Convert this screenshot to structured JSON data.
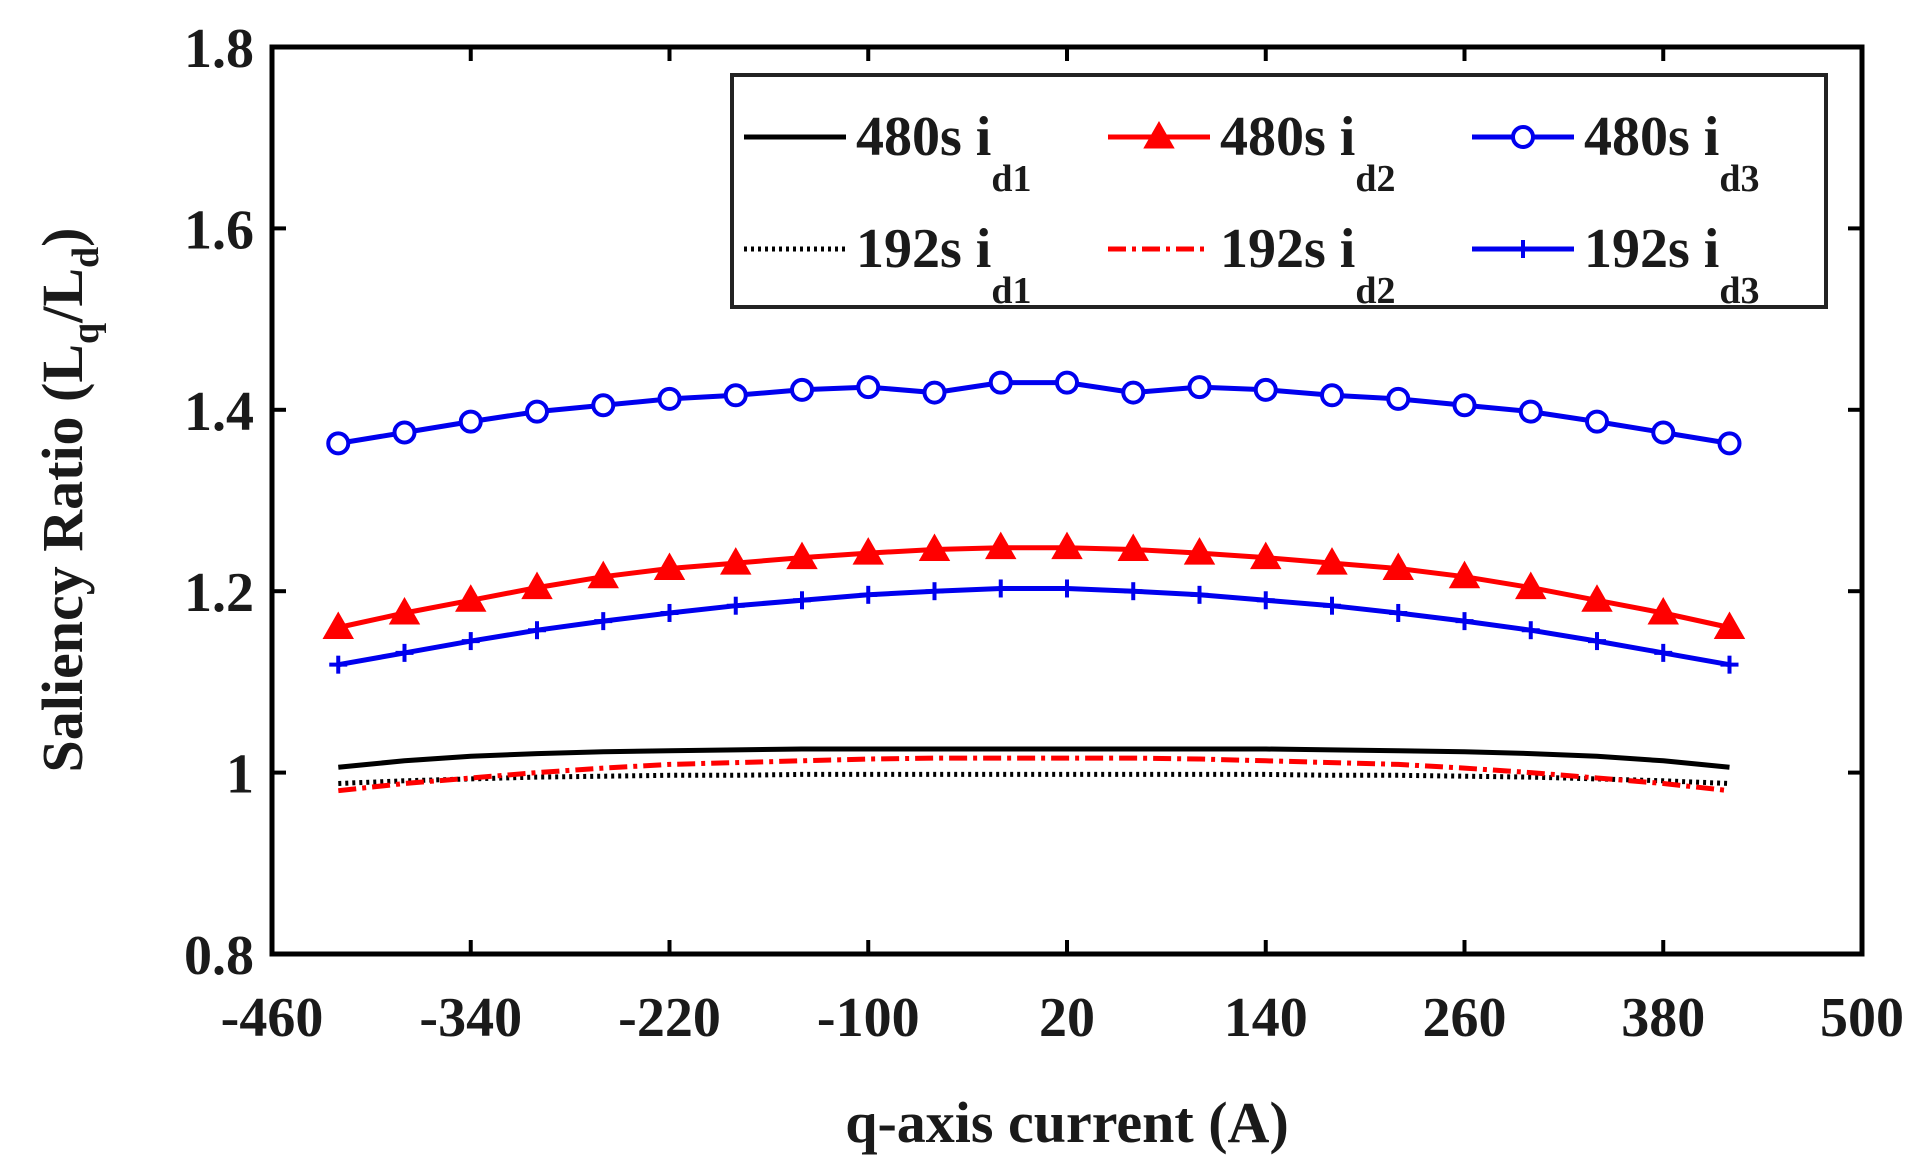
{
  "chart_data": {
    "type": "line",
    "title": "",
    "xlabel": "q-axis current (A)",
    "ylabel": {
      "main": "Saliency Ratio (L",
      "sub1": "q",
      "mid": "/L",
      "sub2": "d",
      "end": ")"
    },
    "xlim": [
      -460,
      500
    ],
    "ylim": [
      0.8,
      1.8
    ],
    "xticks": [
      "-460",
      "-340",
      "-220",
      "-100",
      "20",
      "140",
      "260",
      "380",
      "500"
    ],
    "yticks": [
      "0.8",
      "1",
      "1.2",
      "1.4",
      "1.6",
      "1.8"
    ],
    "x": [
      -420,
      -380,
      -340,
      -300,
      -260,
      -220,
      -180,
      -140,
      -100,
      -60,
      -20,
      20,
      60,
      100,
      140,
      180,
      220,
      260,
      300,
      340,
      380,
      420
    ],
    "series": [
      {
        "name": "480s i_d1",
        "label": "480s i",
        "sub": "d1",
        "color": "#000000",
        "style": "solid",
        "marker": "none",
        "values": [
          1.006,
          1.013,
          1.018,
          1.021,
          1.023,
          1.024,
          1.025,
          1.026,
          1.026,
          1.026,
          1.026,
          1.026,
          1.026,
          1.026,
          1.026,
          1.025,
          1.024,
          1.023,
          1.021,
          1.018,
          1.013,
          1.006
        ]
      },
      {
        "name": "480s i_d2",
        "label": "480s i",
        "sub": "d2",
        "color": "#ff0000",
        "style": "solid",
        "marker": "triangle",
        "values": [
          1.16,
          1.176,
          1.19,
          1.204,
          1.216,
          1.225,
          1.231,
          1.237,
          1.242,
          1.246,
          1.248,
          1.248,
          1.246,
          1.242,
          1.237,
          1.231,
          1.225,
          1.216,
          1.204,
          1.19,
          1.176,
          1.16
        ]
      },
      {
        "name": "480s i_d3",
        "label": "480s i",
        "sub": "d3",
        "color": "#0000ee",
        "style": "solid",
        "marker": "circle",
        "values": [
          1.363,
          1.375,
          1.387,
          1.398,
          1.405,
          1.412,
          1.416,
          1.422,
          1.425,
          1.419,
          1.43,
          1.43,
          1.419,
          1.425,
          1.422,
          1.416,
          1.412,
          1.405,
          1.398,
          1.387,
          1.375,
          1.363
        ]
      },
      {
        "name": "192s i_d1",
        "label": "192s i",
        "sub": "d1",
        "color": "#000000",
        "style": "dotted",
        "marker": "none",
        "values": [
          0.988,
          0.991,
          0.993,
          0.995,
          0.996,
          0.997,
          0.997,
          0.998,
          0.998,
          0.998,
          0.998,
          0.998,
          0.998,
          0.998,
          0.998,
          0.997,
          0.997,
          0.996,
          0.995,
          0.993,
          0.991,
          0.988
        ]
      },
      {
        "name": "192s i_d2",
        "label": "192s i",
        "sub": "d2",
        "color": "#ff0000",
        "style": "dashdot",
        "marker": "none",
        "values": [
          0.98,
          0.988,
          0.994,
          1.0,
          1.005,
          1.009,
          1.011,
          1.013,
          1.015,
          1.016,
          1.016,
          1.016,
          1.016,
          1.015,
          1.013,
          1.011,
          1.009,
          1.005,
          1.0,
          0.994,
          0.988,
          0.98
        ]
      },
      {
        "name": "192s i_d3",
        "label": "192s i",
        "sub": "d3",
        "color": "#0000ee",
        "style": "solid",
        "marker": "plus",
        "values": [
          1.119,
          1.132,
          1.145,
          1.157,
          1.167,
          1.176,
          1.184,
          1.19,
          1.196,
          1.2,
          1.203,
          1.203,
          1.2,
          1.196,
          1.19,
          1.184,
          1.176,
          1.167,
          1.157,
          1.145,
          1.132,
          1.119
        ]
      }
    ],
    "legend": {
      "position": "top-right",
      "columns": 3
    }
  }
}
